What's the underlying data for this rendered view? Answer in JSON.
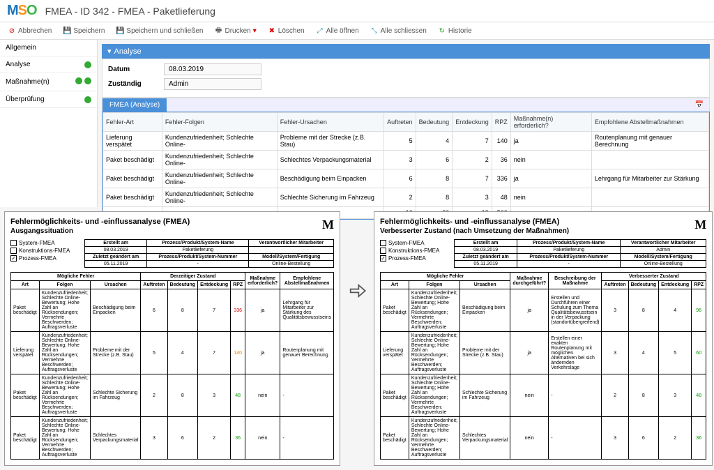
{
  "header": {
    "logo_m": "M",
    "logo_s": "S",
    "logo_o": "O",
    "title": "FMEA - ID 342 - FMEA - Paketlieferung"
  },
  "toolbar": {
    "abbrechen": "Abbrechen",
    "speichern": "Speichern",
    "speichern_schliessen": "Speichern und schließen",
    "drucken": "Drucken",
    "loeschen": "Löschen",
    "alle_oeffnen": "Alle öffnen",
    "alle_schliessen": "Alle schliessen",
    "historie": "Historie"
  },
  "sidebar": {
    "allgemein": "Allgemein",
    "analyse": "Analyse",
    "massnahmen": "Maßnahme(n)",
    "ueberpruefung": "Überprüfung"
  },
  "panel": {
    "title": "Analyse"
  },
  "form": {
    "datum_label": "Datum",
    "datum_value": "08.03.2019",
    "zustaendig_label": "Zuständig",
    "zustaendig_value": "Admin"
  },
  "tab": {
    "label": "FMEA (Analyse)"
  },
  "grid": {
    "headers": {
      "fehler_art": "Fehler-Art",
      "fehler_folgen": "Fehler-Folgen",
      "fehler_ursachen": "Fehler-Ursachen",
      "auftreten": "Auftreten",
      "bedeutung": "Bedeutung",
      "entdeckung": "Entdeckung",
      "rpz": "RPZ",
      "massnahmen_erf": "Maßnahme(n) erforderlich?",
      "empfohlene": "Empfohlene Abstellmaßnahmen"
    },
    "rows": [
      {
        "art": "Lieferung verspätet",
        "folgen": "Kundenzufriedenheit; Schlechte Online-",
        "ursachen": "Probleme mit der Strecke (z.B. Stau)",
        "a": "5",
        "b": "4",
        "e": "7",
        "rpz": "140",
        "erf": "ja",
        "emp": "Routenplanung mit genauer Berechnung"
      },
      {
        "art": "Paket beschädigt",
        "folgen": "Kundenzufriedenheit; Schlechte Online-",
        "ursachen": "Schlechtes Verpackungsmaterial",
        "a": "3",
        "b": "6",
        "e": "2",
        "rpz": "36",
        "erf": "nein",
        "emp": ""
      },
      {
        "art": "Paket beschädigt",
        "folgen": "Kundenzufriedenheit; Schlechte Online-",
        "ursachen": "Beschädigung beim Einpacken",
        "a": "6",
        "b": "8",
        "e": "7",
        "rpz": "336",
        "erf": "ja",
        "emp": "Lehrgang für Mitarbeiter zur Stärkung"
      },
      {
        "art": "Paket beschädigt",
        "folgen": "Kundenzufriedenheit; Schlechte Online-",
        "ursachen": "Schlechte Sicherung im Fahrzeug",
        "a": "2",
        "b": "8",
        "e": "3",
        "rpz": "48",
        "erf": "nein",
        "emp": ""
      }
    ],
    "sums": {
      "a": "16",
      "b": "26",
      "e": "19",
      "rpz": "560"
    }
  },
  "report_left": {
    "title": "Fehlermöglichkeits- und -einflussanalyse (FMEA)",
    "subtitle": "Ausgangssituation",
    "types": {
      "system": "System-FMEA",
      "konstrukt": "Konstruktions-FMEA",
      "prozess": "Prozess-FMEA"
    },
    "meta_headers": {
      "erstellt": "Erstellt am",
      "pname": "Prozess/Produkt/System-Name",
      "verantw": "Verantwortlicher Mitarbeiter",
      "zuletzt": "Zuletzt geändert am",
      "pnummer": "Prozess/Produkt/System-Nummer",
      "modell": "Modell/System/Fertigung"
    },
    "meta": {
      "erstellt": "08.03.2019",
      "pname": "Paketlieferung",
      "verantw": "",
      "zuletzt": "05.11.2019",
      "pnummer": "-",
      "modell": "Online-Bestellung"
    },
    "tbl_headers": {
      "moegliche": "Mögliche Fehler",
      "art": "Art",
      "folgen": "Folgen",
      "ursachen": "Ursachen",
      "zustand": "Derzeitiger Zustand",
      "auftreten": "Auftreten",
      "bedeutung": "Bedeutung",
      "entdeckung": "Entdeckung",
      "rpz": "RPZ",
      "erf": "Maßnahme erforderlich?",
      "emp": "Empfohlene Abstellmaßnahmen"
    },
    "rows": [
      {
        "art": "Paket beschädigt",
        "folgen": "Kundenzufriedenheit; Schlechte Online-Bewertung; Hohe Zahl an Rücksendungen; Vermehrte Beschwerden; Auftragsverluste",
        "ursachen": "Beschädigung beim Einpacken",
        "a": "6",
        "b": "8",
        "e": "7",
        "rpz": "336",
        "rpz_cls": "red",
        "erf": "ja",
        "emp": "Lehrgang für Mitarbeiter zur Stärkung des Qualitätsbewusstseins"
      },
      {
        "art": "Lieferung verspätet",
        "folgen": "Kundenzufriedenheit; Schlechte Online-Bewertung; Hohe Zahl an Rücksendungen; Vermehrte Beschwerden; Auftragsverluste",
        "ursachen": "Probleme mit der Strecke (z.B. Stau)",
        "a": "5",
        "b": "4",
        "e": "7",
        "rpz": "140",
        "rpz_cls": "orange",
        "erf": "ja",
        "emp": "Routenplanung mit genauer Berechnung"
      },
      {
        "art": "Paket beschädigt",
        "folgen": "Kundenzufriedenheit; Schlechte Online-Bewertung; Hohe Zahl an Rücksendungen; Vermehrte Beschwerden; Auftragsverluste",
        "ursachen": "Schlechte Sicherung im Fahrzeug",
        "a": "2",
        "b": "8",
        "e": "3",
        "rpz": "48",
        "rpz_cls": "green",
        "erf": "nein",
        "emp": "-"
      },
      {
        "art": "Paket beschädigt",
        "folgen": "Kundenzufriedenheit; Schlechte Online-Bewertung; Hohe Zahl an Rücksendungen; Vermehrte Beschwerden; Auftragsverluste",
        "ursachen": "Schlechtes Verpackungsmaterial",
        "a": "3",
        "b": "6",
        "e": "2",
        "rpz": "36",
        "rpz_cls": "green",
        "erf": "nein",
        "emp": "-"
      }
    ]
  },
  "report_right": {
    "title": "Fehlermöglichkeits- und -einflussanalyse (FMEA)",
    "subtitle": "Verbesserter Zustand (nach Umsetzung der Maßnahmen)",
    "meta": {
      "erstellt": "08.03.2019",
      "pname": "Paketlieferung",
      "verantw": "Admin",
      "zuletzt": "05.11.2019",
      "pnummer": "-",
      "modell": "Online-Bestellung"
    },
    "tbl_headers": {
      "durchgef": "Maßnahme durchgeführt?",
      "beschr": "Beschreibung der Maßnahme",
      "verb": "Verbesserter Zustand"
    },
    "rows": [
      {
        "art": "Paket beschädigt",
        "folgen": "Kundenzufriedenheit; Schlechte Online-Bewertung; Hohe Zahl an Rücksendungen; Vermehrte Beschwerden; Auftragsverluste",
        "ursachen": "Beschädigung beim Einpacken",
        "durch": "ja",
        "beschr": "Erstellen und Durchführen einer Schulung zum Thema Qualitätsbewusstsein in der Verpackung (standortübergreifend)",
        "a": "3",
        "b": "8",
        "e": "4",
        "rpz": "96",
        "rpz_cls": "green"
      },
      {
        "art": "Lieferung verspätet",
        "folgen": "Kundenzufriedenheit; Schlechte Online-Bewertung; Hohe Zahl an Rücksendungen; Vermehrte Beschwerden; Auftragsverluste",
        "ursachen": "Probleme mit der Strecke (z.B. Stau)",
        "durch": "ja",
        "beschr": "Erstellen einer exakten Routenplanung mit möglichen Alternativen bei sich ändernden Verkehrslage",
        "a": "3",
        "b": "4",
        "e": "5",
        "rpz": "60",
        "rpz_cls": "green"
      },
      {
        "art": "Paket beschädigt",
        "folgen": "Kundenzufriedenheit; Schlechte Online-Bewertung; Hohe Zahl an Rücksendungen; Vermehrte Beschwerden; Auftragsverluste",
        "ursachen": "Schlechte Sicherung im Fahrzeug",
        "durch": "nein",
        "beschr": "-",
        "a": "2",
        "b": "8",
        "e": "3",
        "rpz": "48",
        "rpz_cls": "green"
      },
      {
        "art": "Paket beschädigt",
        "folgen": "Kundenzufriedenheit; Schlechte Online-Bewertung; Hohe Zahl an Rücksendungen; Vermehrte Beschwerden; Auftragsverluste",
        "ursachen": "Schlechtes Verpackungsmaterial",
        "durch": "nein",
        "beschr": "-",
        "a": "3",
        "b": "6",
        "e": "2",
        "rpz": "36",
        "rpz_cls": "green"
      }
    ]
  }
}
